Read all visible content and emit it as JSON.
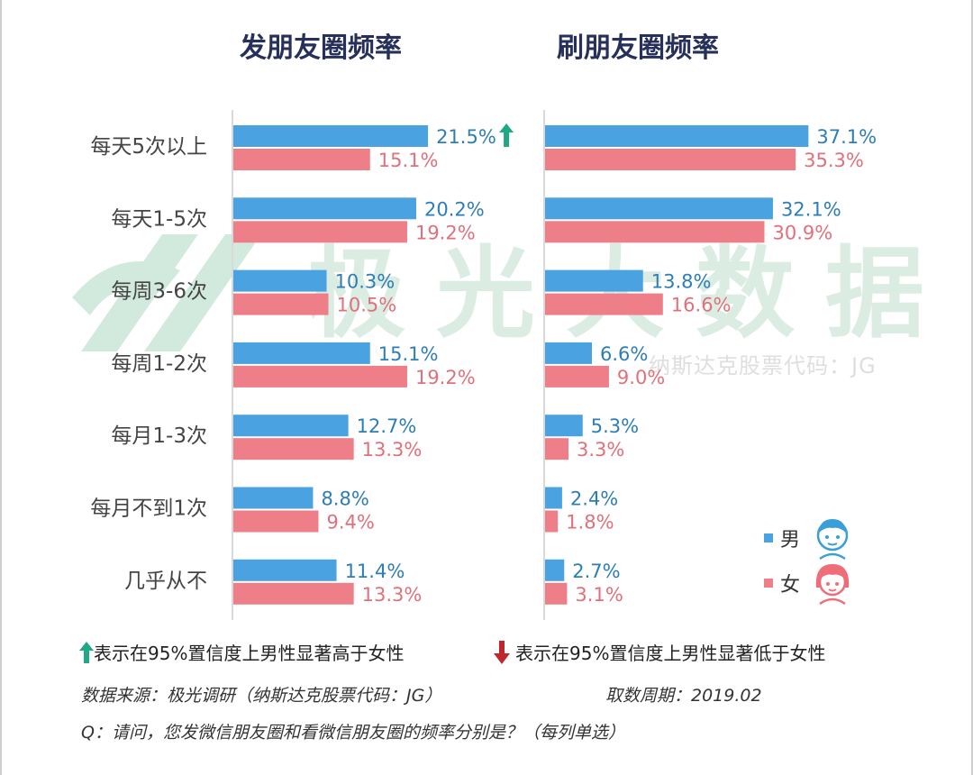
{
  "chart_data": [
    {
      "type": "bar",
      "title": "发朋友圈频率",
      "categories": [
        "每天5次以上",
        "每天1-5次",
        "每周3-6次",
        "每周1-2次",
        "每月1-3次",
        "每月不到1次",
        "几乎从不"
      ],
      "series": [
        {
          "name": "男",
          "values": [
            21.5,
            20.2,
            10.3,
            15.1,
            12.7,
            8.8,
            11.4
          ],
          "color": "#4aa3e0"
        },
        {
          "name": "女",
          "values": [
            15.1,
            19.2,
            10.5,
            19.2,
            13.3,
            9.4,
            13.3
          ],
          "color": "#ee7f88"
        }
      ],
      "value_labels": {
        "男": [
          "21.5%",
          "20.2%",
          "10.3%",
          "15.1%",
          "12.7%",
          "8.8%",
          "11.4%"
        ],
        "女": [
          "15.1%",
          "19.2%",
          "10.5%",
          "19.2%",
          "13.3%",
          "9.4%",
          "13.3%"
        ]
      },
      "significance_up": [
        0
      ],
      "orientation": "horizontal",
      "xlim": [
        0,
        40
      ]
    },
    {
      "type": "bar",
      "title": "刷朋友圈频率",
      "categories": [
        "每天5次以上",
        "每天1-5次",
        "每周3-6次",
        "每周1-2次",
        "每月1-3次",
        "每月不到1次",
        "几乎从不"
      ],
      "series": [
        {
          "name": "男",
          "values": [
            37.1,
            32.1,
            13.8,
            6.6,
            5.3,
            2.4,
            2.7
          ],
          "color": "#4aa3e0"
        },
        {
          "name": "女",
          "values": [
            35.3,
            30.9,
            16.6,
            9.0,
            3.3,
            1.8,
            3.1
          ],
          "color": "#ee7f88"
        }
      ],
      "value_labels": {
        "男": [
          "37.1%",
          "32.1%",
          "13.8%",
          "6.6%",
          "5.3%",
          "2.4%",
          "2.7%"
        ],
        "女": [
          "35.3%",
          "30.9%",
          "16.6%",
          "9.0%",
          "3.3%",
          "1.8%",
          "3.1%"
        ]
      },
      "orientation": "horizontal",
      "xlim": [
        0,
        40
      ]
    }
  ],
  "colors": {
    "male": "#4aa3e0",
    "female": "#ee7f88",
    "male_label": "#2f7db5",
    "female_label": "#e0707b",
    "sig_up": "#1fa883",
    "sig_down": "#c0262d",
    "title": "#27305a"
  },
  "legend": {
    "male": "男",
    "female": "女"
  },
  "watermark": {
    "text": "极光大数据",
    "sub": "纳斯达克股票代码：JG"
  },
  "footnotes": {
    "sig_up": "表示在95%置信度上男性显著高于女性",
    "sig_down": "表示在95%置信度上男性显著低于女性",
    "source": "数据来源：极光调研（纳斯达克股票代码：JG）",
    "period": "取数周期：2019.02",
    "question": "Q：请问，您发微信朋友圈和看微信朋友圈的频率分别是？（每列单选）"
  },
  "icons": {
    "sig_up": "up-arrow-icon",
    "sig_down": "down-arrow-icon",
    "male": "boy-face-icon",
    "female": "girl-face-icon"
  }
}
